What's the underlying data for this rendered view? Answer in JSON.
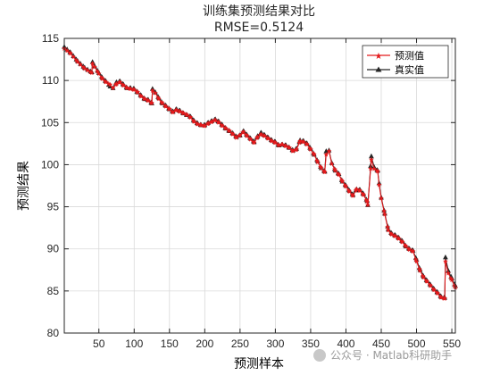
{
  "chart_data": {
    "type": "line",
    "title": "训练集预测结果对比",
    "subtitle": "RMSE=0.5124",
    "xlabel": "预测样本",
    "ylabel": "预测结果",
    "xlim": [
      1,
      555
    ],
    "ylim": [
      80,
      115
    ],
    "xticks": [
      50,
      100,
      150,
      200,
      250,
      300,
      350,
      400,
      450,
      500,
      550
    ],
    "yticks": [
      80,
      85,
      90,
      95,
      100,
      105,
      110,
      115
    ],
    "grid": true,
    "legend_position": "top-right",
    "series": [
      {
        "name": "预测值",
        "color": "#e31a1c",
        "marker": "star",
        "x": [
          1,
          10,
          20,
          30,
          40,
          41,
          44,
          50,
          55,
          60,
          66,
          70,
          75,
          80,
          85,
          90,
          95,
          100,
          105,
          110,
          115,
          120,
          125,
          126,
          130,
          135,
          140,
          145,
          150,
          155,
          160,
          165,
          170,
          175,
          180,
          185,
          190,
          195,
          200,
          205,
          210,
          215,
          220,
          225,
          230,
          235,
          240,
          245,
          250,
          255,
          260,
          265,
          270,
          275,
          280,
          285,
          290,
          295,
          300,
          305,
          310,
          315,
          320,
          325,
          330,
          335,
          340,
          345,
          350,
          355,
          360,
          365,
          370,
          372,
          376,
          380,
          385,
          390,
          395,
          400,
          405,
          410,
          415,
          420,
          425,
          430,
          431,
          436,
          440,
          445,
          447,
          450,
          455,
          460,
          465,
          470,
          475,
          480,
          485,
          490,
          495,
          500,
          505,
          510,
          515,
          520,
          525,
          530,
          535,
          540,
          541,
          545,
          550,
          555
        ],
        "y": [
          113.8,
          113.2,
          112.2,
          111.4,
          110.9,
          112.0,
          111.6,
          110.8,
          110.2,
          109.8,
          109.5,
          109.1,
          109.6,
          109.8,
          109.4,
          109.1,
          109.0,
          108.9,
          108.6,
          108.1,
          107.8,
          107.6,
          107.3,
          108.8,
          108.5,
          107.8,
          107.3,
          106.9,
          106.6,
          106.2,
          106.5,
          106.3,
          106.1,
          105.9,
          105.6,
          105.1,
          104.8,
          104.7,
          104.6,
          104.9,
          105.1,
          105.3,
          105.0,
          104.6,
          104.3,
          104.0,
          103.6,
          103.2,
          103.5,
          103.9,
          103.4,
          103.0,
          102.6,
          103.3,
          103.6,
          103.4,
          103.1,
          102.8,
          102.6,
          102.3,
          102.4,
          102.2,
          102.0,
          101.6,
          101.8,
          102.8,
          102.7,
          102.4,
          101.8,
          101.2,
          100.3,
          99.6,
          99.1,
          101.2,
          101.6,
          100.1,
          99.3,
          98.8,
          98.0,
          97.4,
          96.8,
          96.3,
          97.1,
          96.9,
          96.4,
          95.6,
          95.2,
          100.6,
          99.5,
          99.2,
          97.6,
          96.0,
          94.1,
          92.2,
          91.7,
          91.5,
          91.2,
          90.8,
          90.3,
          89.9,
          89.7,
          88.5,
          87.4,
          86.6,
          86.1,
          85.6,
          85.1,
          84.7,
          84.2,
          84.1,
          88.5,
          87.1,
          86.3,
          85.4
        ]
      },
      {
        "name": "真实值",
        "color": "#262626",
        "marker": "triangle",
        "x": [
          1,
          10,
          20,
          30,
          40,
          41,
          44,
          50,
          55,
          60,
          66,
          70,
          75,
          80,
          85,
          90,
          95,
          100,
          105,
          110,
          115,
          120,
          125,
          126,
          130,
          135,
          140,
          145,
          150,
          155,
          160,
          165,
          170,
          175,
          180,
          185,
          190,
          195,
          200,
          205,
          210,
          215,
          220,
          225,
          230,
          235,
          240,
          245,
          250,
          255,
          260,
          265,
          270,
          275,
          280,
          285,
          290,
          295,
          300,
          305,
          310,
          315,
          320,
          325,
          330,
          335,
          340,
          345,
          350,
          355,
          360,
          365,
          370,
          372,
          376,
          380,
          385,
          390,
          395,
          400,
          405,
          410,
          415,
          420,
          425,
          430,
          431,
          436,
          440,
          445,
          447,
          450,
          455,
          460,
          465,
          470,
          475,
          480,
          485,
          490,
          495,
          500,
          505,
          510,
          515,
          520,
          525,
          530,
          535,
          540,
          541,
          545,
          550,
          555
        ],
        "y": [
          114.0,
          113.3,
          112.3,
          111.5,
          111.0,
          112.2,
          111.7,
          110.9,
          110.3,
          109.9,
          109.3,
          109.1,
          109.8,
          109.9,
          109.5,
          109.1,
          109.1,
          109.0,
          108.6,
          108.2,
          107.8,
          107.7,
          107.3,
          109.0,
          108.6,
          107.9,
          107.3,
          107.0,
          106.6,
          106.3,
          106.6,
          106.4,
          106.1,
          105.9,
          105.7,
          105.2,
          104.9,
          104.7,
          104.7,
          105.0,
          105.2,
          105.4,
          105.1,
          104.7,
          104.3,
          104.0,
          103.7,
          103.3,
          103.5,
          104.0,
          103.5,
          103.1,
          102.7,
          103.4,
          103.8,
          103.5,
          103.2,
          102.9,
          102.7,
          102.3,
          102.4,
          102.3,
          102.0,
          101.7,
          101.9,
          102.9,
          102.8,
          102.5,
          101.9,
          101.2,
          100.4,
          99.6,
          99.2,
          101.6,
          101.7,
          100.2,
          99.3,
          98.9,
          98.0,
          97.5,
          96.9,
          96.4,
          97.1,
          97.0,
          96.5,
          95.7,
          95.2,
          101.0,
          99.7,
          99.3,
          97.8,
          96.1,
          94.2,
          92.3,
          91.8,
          91.6,
          91.3,
          90.9,
          90.3,
          90.0,
          89.8,
          88.7,
          87.5,
          86.7,
          86.2,
          85.7,
          85.2,
          84.8,
          84.3,
          84.2,
          89.0,
          87.4,
          86.5,
          85.6
        ]
      }
    ]
  },
  "watermark": "公众号 · Matlab科研助手"
}
